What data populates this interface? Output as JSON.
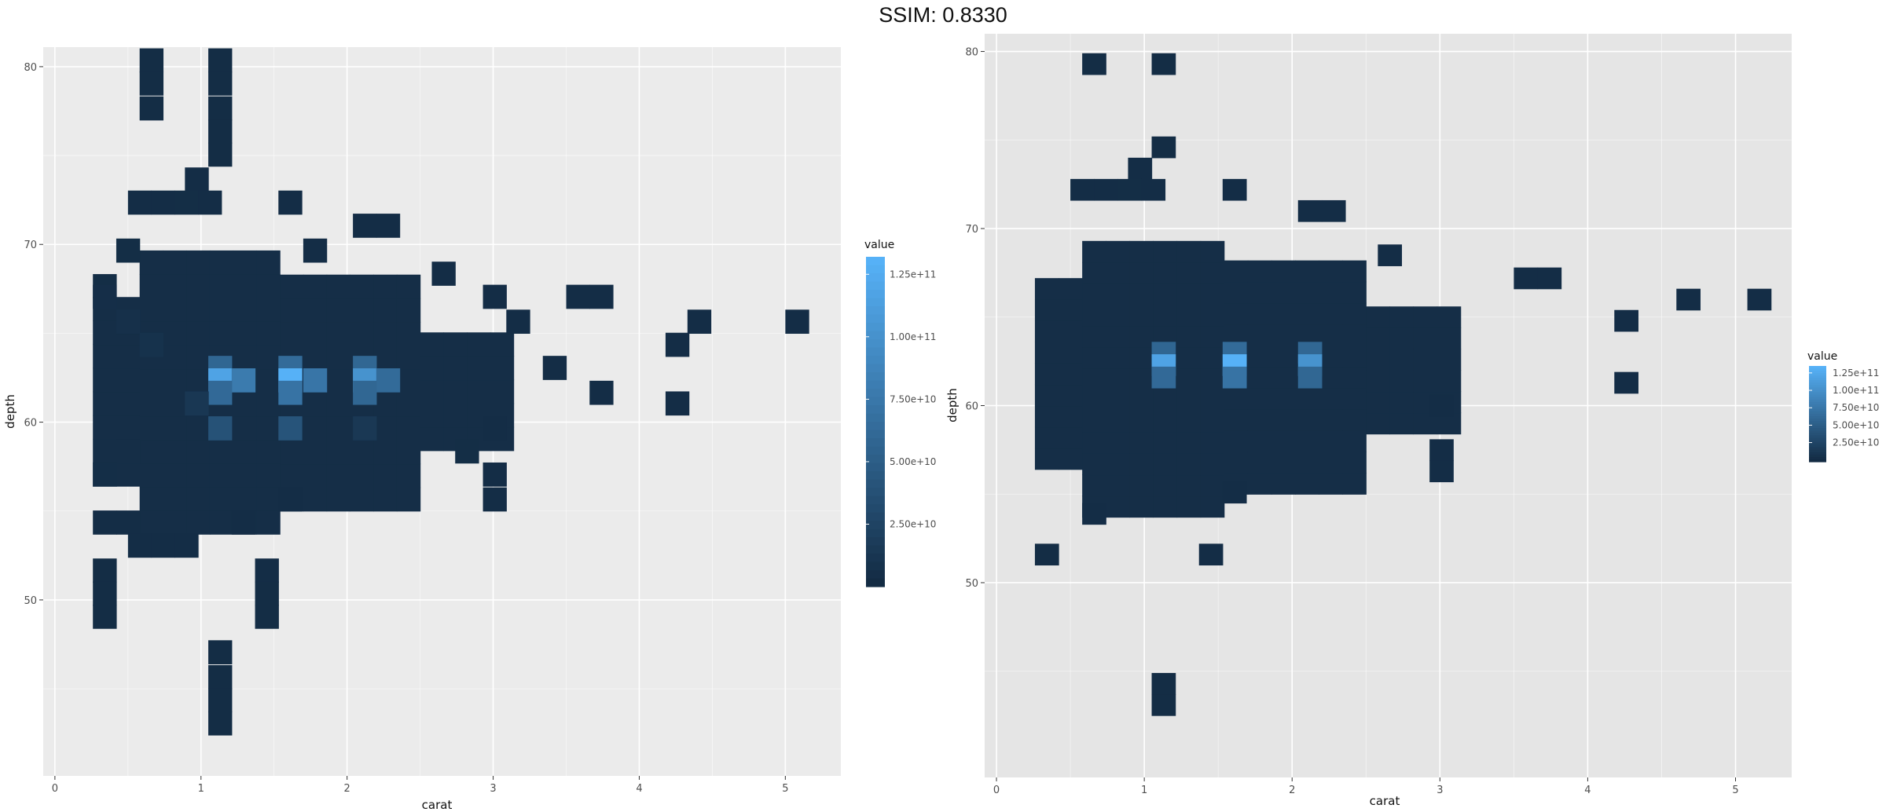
{
  "page": {
    "title": "SSIM: 0.8330"
  },
  "colors": {
    "low": "#132B43",
    "high": "#56B1F7",
    "panel_left": "#ebebeb",
    "panel_right": "#e5e5e5",
    "grid": "#ffffff"
  },
  "chart_data": [
    {
      "type": "heatmap",
      "title": "",
      "xlabel": "carat",
      "ylabel": "depth",
      "xlim": [
        -0.08,
        5.38
      ],
      "ylim": [
        40.1,
        81.1
      ],
      "x_ticks": [
        "0",
        "1",
        "2",
        "3",
        "4",
        "5"
      ],
      "y_ticks": [
        "50",
        "60",
        "70",
        "80"
      ],
      "grid": true,
      "legend": {
        "title": "value",
        "position": "right",
        "labels": [
          "2.50e+10",
          "5.00e+10",
          "7.50e+10",
          "1.00e+11",
          "1.25e+11"
        ],
        "min": 0,
        "max": 130000000000
      },
      "bin_width": {
        "x": 0.16,
        "depth": 1.33
      },
      "cells": [
        {
          "x": 0.58,
          "y": 79.7,
          "value": 200000000
        },
        {
          "x": 1.05,
          "y": 79.7,
          "value": 200000000
        },
        {
          "x": 0.58,
          "y": 78.4,
          "value": 200000000
        },
        {
          "x": 1.05,
          "y": 78.4,
          "value": 200000000
        },
        {
          "x": 0.58,
          "y": 77.0,
          "value": 200000000
        },
        {
          "x": 1.05,
          "y": 77.0,
          "value": 200000000
        },
        {
          "x": 1.05,
          "y": 75.7,
          "value": 200000000
        },
        {
          "x": 1.05,
          "y": 74.4,
          "value": 200000000
        },
        {
          "x": 0.89,
          "y": 73.0,
          "value": 300000000
        },
        {
          "x": 0.5,
          "y": 71.7,
          "value": 300000000
        },
        {
          "x": 0.66,
          "y": 71.7,
          "value": 300000000
        },
        {
          "x": 0.82,
          "y": 71.7,
          "value": 400000000
        },
        {
          "x": 0.98,
          "y": 71.7,
          "value": 300000000
        },
        {
          "x": 1.53,
          "y": 71.7,
          "value": 300000000
        },
        {
          "x": 2.04,
          "y": 70.4,
          "value": 300000000
        },
        {
          "x": 2.2,
          "y": 70.4,
          "value": 300000000
        },
        {
          "x": 0.42,
          "y": 69.0,
          "value": 400000000
        },
        {
          "x": 1.7,
          "y": 69.0,
          "value": 300000000
        },
        {
          "x": 0.26,
          "y": 67.0,
          "value": 400000000
        },
        {
          "x": 2.58,
          "y": 67.7,
          "value": 300000000
        },
        {
          "x": 0.26,
          "y": 66.4,
          "value": 700000000
        },
        {
          "x": 2.93,
          "y": 66.4,
          "value": 300000000
        },
        {
          "x": 3.5,
          "y": 66.4,
          "value": 300000000
        },
        {
          "x": 3.66,
          "y": 66.4,
          "value": 300000000
        },
        {
          "x": 0.42,
          "y": 65.0,
          "value": 1500000000
        },
        {
          "x": 3.09,
          "y": 65.0,
          "value": 300000000
        },
        {
          "x": 4.33,
          "y": 65.0,
          "value": 300000000
        },
        {
          "x": 5.0,
          "y": 65.0,
          "value": 300000000
        },
        {
          "x": 0.58,
          "y": 63.7,
          "value": 2500000000
        },
        {
          "x": 4.18,
          "y": 63.7,
          "value": 300000000
        },
        {
          "x": 1.05,
          "y": 62.4,
          "value": 25000000000
        },
        {
          "x": 1.53,
          "y": 62.4,
          "value": 30000000000
        },
        {
          "x": 2.04,
          "y": 62.4,
          "value": 26000000000
        },
        {
          "x": 3.34,
          "y": 62.4,
          "value": 300000000
        },
        {
          "x": 1.05,
          "y": 61.7,
          "value": 105000000000
        },
        {
          "x": 1.53,
          "y": 61.7,
          "value": 130000000000
        },
        {
          "x": 2.04,
          "y": 61.7,
          "value": 78000000000
        },
        {
          "x": 1.21,
          "y": 61.7,
          "value": 46000000000
        },
        {
          "x": 1.7,
          "y": 61.7,
          "value": 40000000000
        },
        {
          "x": 2.2,
          "y": 61.7,
          "value": 30000000000
        },
        {
          "x": 1.05,
          "y": 61.0,
          "value": 28000000000
        },
        {
          "x": 1.53,
          "y": 61.0,
          "value": 38000000000
        },
        {
          "x": 2.04,
          "y": 61.0,
          "value": 26000000000
        },
        {
          "x": 3.66,
          "y": 61.0,
          "value": 300000000
        },
        {
          "x": 0.89,
          "y": 60.4,
          "value": 8000000000
        },
        {
          "x": 4.18,
          "y": 60.4,
          "value": 300000000
        },
        {
          "x": 1.05,
          "y": 59.0,
          "value": 11000000000
        },
        {
          "x": 1.53,
          "y": 59.0,
          "value": 12000000000
        },
        {
          "x": 2.04,
          "y": 59.0,
          "value": 10000000000
        },
        {
          "x": 2.93,
          "y": 59.0,
          "value": 300000000
        },
        {
          "x": 0.42,
          "y": 57.7,
          "value": 600000000
        },
        {
          "x": 2.74,
          "y": 57.7,
          "value": 400000000
        },
        {
          "x": 0.26,
          "y": 56.4,
          "value": 500000000
        },
        {
          "x": 2.93,
          "y": 56.4,
          "value": 300000000
        },
        {
          "x": 1.53,
          "y": 55.0,
          "value": 300000000
        },
        {
          "x": 2.93,
          "y": 55.0,
          "value": 300000000
        },
        {
          "x": 0.26,
          "y": 53.7,
          "value": 300000000
        },
        {
          "x": 0.42,
          "y": 53.7,
          "value": 300000000
        },
        {
          "x": 1.21,
          "y": 53.7,
          "value": 300000000
        },
        {
          "x": 0.5,
          "y": 52.4,
          "value": 300000000
        },
        {
          "x": 0.66,
          "y": 52.4,
          "value": 300000000
        },
        {
          "x": 0.82,
          "y": 52.4,
          "value": 300000000
        },
        {
          "x": 1.37,
          "y": 51.0,
          "value": 300000000
        },
        {
          "x": 0.26,
          "y": 51.0,
          "value": 200000000
        },
        {
          "x": 0.26,
          "y": 49.7,
          "value": 200000000
        },
        {
          "x": 0.26,
          "y": 48.4,
          "value": 200000000
        },
        {
          "x": 1.37,
          "y": 49.7,
          "value": 200000000
        },
        {
          "x": 1.37,
          "y": 48.4,
          "value": 200000000
        },
        {
          "x": 1.05,
          "y": 46.4,
          "value": 200000000
        },
        {
          "x": 1.05,
          "y": 45.0,
          "value": 200000000
        },
        {
          "x": 1.05,
          "y": 43.7,
          "value": 200000000
        },
        {
          "x": 1.05,
          "y": 42.4,
          "value": 200000000
        }
      ]
    },
    {
      "type": "heatmap",
      "title": "",
      "xlabel": "carat",
      "ylabel": "depth",
      "xlim": [
        -0.08,
        5.38
      ],
      "ylim": [
        39.0,
        81.0
      ],
      "x_ticks": [
        "0",
        "1",
        "2",
        "3",
        "4",
        "5"
      ],
      "y_ticks": [
        "50",
        "60",
        "70",
        "80"
      ],
      "grid": true,
      "legend": {
        "title": "value",
        "position": "right",
        "labels": [
          "1.25e+11",
          "1.00e+11",
          "7.50e+10",
          "5.00e+10",
          "2.50e+10"
        ],
        "min": 0,
        "max": 130000000000
      },
      "bin_width": {
        "x": 0.16,
        "depth": 1.2
      },
      "cells": [
        {
          "x": 0.58,
          "y": 78.7,
          "value": 200000000
        },
        {
          "x": 1.05,
          "y": 78.7,
          "value": 200000000
        },
        {
          "x": 1.05,
          "y": 74.0,
          "value": 200000000
        },
        {
          "x": 0.89,
          "y": 72.8,
          "value": 300000000
        },
        {
          "x": 1.53,
          "y": 71.6,
          "value": 300000000
        },
        {
          "x": 0.5,
          "y": 71.6,
          "value": 300000000
        },
        {
          "x": 0.66,
          "y": 71.6,
          "value": 300000000
        },
        {
          "x": 0.82,
          "y": 71.6,
          "value": 400000000
        },
        {
          "x": 0.98,
          "y": 71.6,
          "value": 300000000
        },
        {
          "x": 2.04,
          "y": 70.4,
          "value": 300000000
        },
        {
          "x": 2.2,
          "y": 70.4,
          "value": 300000000
        },
        {
          "x": 2.58,
          "y": 67.9,
          "value": 300000000
        },
        {
          "x": 3.5,
          "y": 66.6,
          "value": 300000000
        },
        {
          "x": 3.66,
          "y": 66.6,
          "value": 300000000
        },
        {
          "x": 4.6,
          "y": 65.4,
          "value": 300000000
        },
        {
          "x": 5.08,
          "y": 65.4,
          "value": 300000000
        },
        {
          "x": 4.18,
          "y": 64.2,
          "value": 300000000
        },
        {
          "x": 1.05,
          "y": 62.4,
          "value": 25000000000
        },
        {
          "x": 1.53,
          "y": 62.4,
          "value": 30000000000
        },
        {
          "x": 2.04,
          "y": 62.4,
          "value": 26000000000
        },
        {
          "x": 1.05,
          "y": 61.7,
          "value": 105000000000
        },
        {
          "x": 1.53,
          "y": 61.7,
          "value": 130000000000
        },
        {
          "x": 2.04,
          "y": 61.7,
          "value": 78000000000
        },
        {
          "x": 1.05,
          "y": 61.0,
          "value": 28000000000
        },
        {
          "x": 1.53,
          "y": 61.0,
          "value": 38000000000
        },
        {
          "x": 2.04,
          "y": 61.0,
          "value": 26000000000
        },
        {
          "x": 4.18,
          "y": 60.7,
          "value": 300000000
        },
        {
          "x": 2.93,
          "y": 59.4,
          "value": 300000000
        },
        {
          "x": 2.93,
          "y": 56.9,
          "value": 300000000
        },
        {
          "x": 2.93,
          "y": 55.7,
          "value": 300000000
        },
        {
          "x": 1.53,
          "y": 54.5,
          "value": 300000000
        },
        {
          "x": 0.58,
          "y": 53.3,
          "value": 300000000
        },
        {
          "x": 0.26,
          "y": 51.0,
          "value": 200000000
        },
        {
          "x": 1.37,
          "y": 51.0,
          "value": 300000000
        },
        {
          "x": 1.05,
          "y": 43.7,
          "value": 200000000
        },
        {
          "x": 1.05,
          "y": 42.5,
          "value": 200000000
        }
      ]
    }
  ]
}
